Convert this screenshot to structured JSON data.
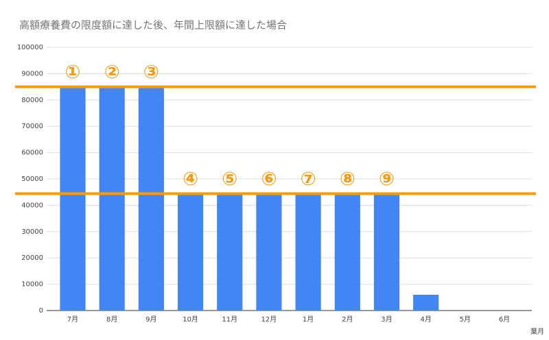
{
  "chart_data": {
    "type": "bar",
    "title": "高額療養費の限度額に達した後、年間上限額に達した場合",
    "x_label": "葉月",
    "categories": [
      "7月",
      "8月",
      "9月",
      "10月",
      "11月",
      "12月",
      "1月",
      "2月",
      "3月",
      "4月",
      "5月",
      "6月"
    ],
    "values": [
      85000,
      85000,
      85000,
      44400,
      44400,
      44400,
      44400,
      44400,
      44400,
      6000,
      0,
      0
    ],
    "color": "#4285f4",
    "ylim": [
      0,
      100000
    ],
    "yticks": [
      0,
      10000,
      20000,
      30000,
      40000,
      50000,
      60000,
      70000,
      80000,
      90000,
      100000
    ],
    "grid": true,
    "reference_lines": [
      {
        "value": 85000,
        "color": "#f39c12"
      },
      {
        "value": 44400,
        "color": "#f39c12"
      }
    ],
    "annotations": [
      "①",
      "②",
      "③",
      "④",
      "⑤",
      "⑥",
      "⑦",
      "⑧",
      "⑨"
    ]
  }
}
